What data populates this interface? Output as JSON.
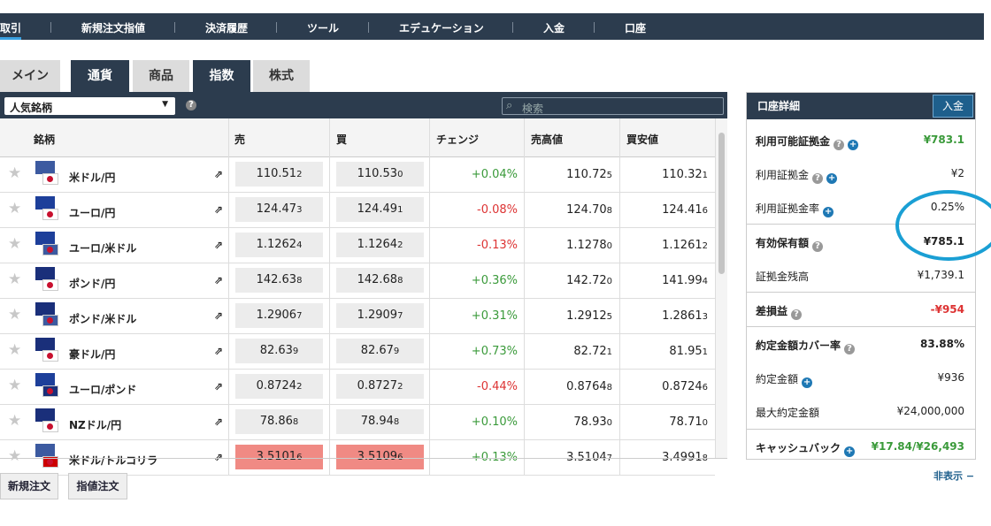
{
  "nav": [
    "取引",
    "新規注文指値",
    "決済履歴",
    "ツール",
    "エデュケーション",
    "入金",
    "口座"
  ],
  "tabs": [
    "メイン",
    "通貨",
    "商品",
    "指数",
    "株式"
  ],
  "toolbar": {
    "dropdown": "人気銘柄",
    "search": "検索"
  },
  "table": {
    "headers": [
      "銘柄",
      "売",
      "買",
      "チェンジ",
      "売高値",
      "買安値"
    ],
    "rows": [
      [
        "米ドル/円",
        "110.512",
        "110.530",
        "+0.04%",
        "110.725",
        "110.321"
      ],
      [
        "ユーロ/円",
        "124.473",
        "124.491",
        "-0.08%",
        "124.708",
        "124.416"
      ],
      [
        "ユーロ/米ドル",
        "1.12624",
        "1.12642",
        "-0.13%",
        "1.12780",
        "1.12612"
      ],
      [
        "ポンド/円",
        "142.638",
        "142.688",
        "+0.36%",
        "142.720",
        "141.994"
      ],
      [
        "ポンド/米ドル",
        "1.29067",
        "1.29097",
        "+0.31%",
        "1.29125",
        "1.28613"
      ],
      [
        "豪ドル/円",
        "82.639",
        "82.679",
        "+0.73%",
        "82.721",
        "81.951"
      ],
      [
        "ユーロ/ポンド",
        "0.87242",
        "0.87272",
        "-0.44%",
        "0.87648",
        "0.87246"
      ],
      [
        "NZドル/円",
        "78.868",
        "78.948",
        "+0.10%",
        "78.930",
        "78.710"
      ],
      [
        "米ドル/トルコリラ",
        "3.51016",
        "3.51096",
        "+0.13%",
        "3.51047",
        "3.49918"
      ]
    ]
  },
  "account": {
    "title": "口座詳細",
    "deposit": "入金",
    "rows": [
      [
        "利用可能証拠金",
        "¥783.1"
      ],
      [
        "利用証拠金",
        "¥2"
      ],
      [
        "利用証拠金率",
        "0.25%"
      ],
      [
        "有効保有額",
        "¥785.1"
      ],
      [
        "証拠金残高",
        "¥1,739.1"
      ],
      [
        "差損益",
        "-¥954"
      ],
      [
        "約定金額カバー率",
        "83.88%"
      ],
      [
        "約定金額",
        "¥936"
      ],
      [
        "最大約定金額",
        "¥24,000,000"
      ],
      [
        "キャッシュバック",
        "¥17.84/¥26,493"
      ]
    ],
    "hide": "非表示"
  },
  "buttons": [
    "新規注文",
    "指値注文"
  ]
}
